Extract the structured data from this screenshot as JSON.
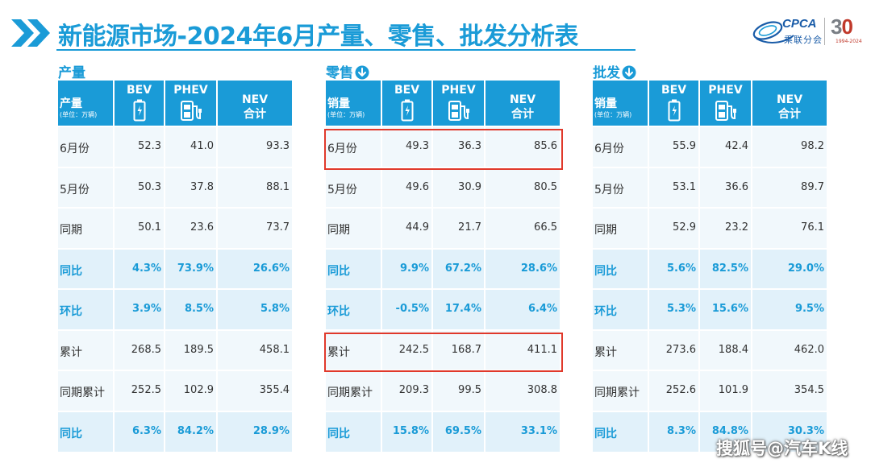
{
  "title": "新能源市场-2024年6月产量、零售、批发分析表",
  "brand": {
    "cpca": "CPCA",
    "cn": "乘联分会",
    "num_3": "3",
    "num_0": "0",
    "years": "1994-2024"
  },
  "headers": {
    "unit": "(单位：万辆)",
    "bev": "BEV",
    "phev": "PHEV",
    "nev_1": "NEV",
    "nev_2": "合计"
  },
  "row_labels": [
    "6月份",
    "5月份",
    "同期",
    "同比",
    "环比",
    "累计",
    "同期累计",
    "同比"
  ],
  "sections": [
    {
      "label": "产量",
      "header_label": "产量",
      "rows": [
        [
          "52.3",
          "41.0",
          "93.3"
        ],
        [
          "50.3",
          "37.8",
          "88.1"
        ],
        [
          "50.1",
          "23.6",
          "73.7"
        ],
        [
          "4.3%",
          "73.9%",
          "26.6%"
        ],
        [
          "3.9%",
          "8.5%",
          "5.8%"
        ],
        [
          "268.5",
          "189.5",
          "458.1"
        ],
        [
          "252.5",
          "102.9",
          "355.4"
        ],
        [
          "6.3%",
          "84.2%",
          "28.9%"
        ]
      ]
    },
    {
      "label": "零售",
      "header_label": "销量",
      "rows": [
        [
          "49.3",
          "36.3",
          "85.6"
        ],
        [
          "49.6",
          "30.9",
          "80.5"
        ],
        [
          "44.9",
          "21.7",
          "66.5"
        ],
        [
          "9.9%",
          "67.2%",
          "28.6%"
        ],
        [
          "-0.5%",
          "17.4%",
          "6.4%"
        ],
        [
          "242.5",
          "168.7",
          "411.1"
        ],
        [
          "209.3",
          "99.5",
          "308.8"
        ],
        [
          "15.8%",
          "69.5%",
          "33.1%"
        ]
      ]
    },
    {
      "label": "批发",
      "header_label": "销量",
      "rows": [
        [
          "55.9",
          "42.4",
          "98.2"
        ],
        [
          "53.1",
          "36.6",
          "89.7"
        ],
        [
          "52.9",
          "23.2",
          "76.1"
        ],
        [
          "5.6%",
          "82.5%",
          "29.0%"
        ],
        [
          "5.3%",
          "15.6%",
          "9.5%"
        ],
        [
          "273.6",
          "188.4",
          "462.0"
        ],
        [
          "252.6",
          "101.9",
          "354.5"
        ],
        [
          "8.3%",
          "84.8%",
          "30.3%"
        ]
      ]
    }
  ],
  "source_mark": "搜狐号@汽车K线",
  "colors": {
    "accent": "#1a9bd7",
    "highlight": "#e0392b"
  }
}
